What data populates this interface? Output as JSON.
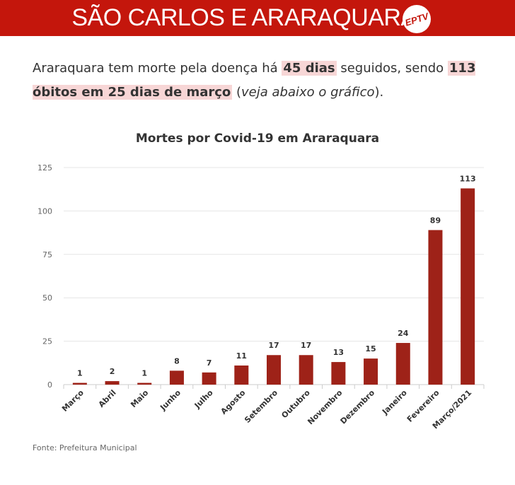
{
  "header": {
    "title": "SÃO CARLOS E ARARAQUARA",
    "logo_text": "EPTV"
  },
  "intro": {
    "part1": "Araraquara tem morte pela doença há ",
    "highlight1": "45 dias",
    "part2": " seguidos, sendo ",
    "highlight2": "113 óbitos em 25 dias de março",
    "part3": " (",
    "italic": "veja abaixo o gráfico",
    "part4": ")."
  },
  "colors": {
    "banner": "#c4160c",
    "bar": "#9e2218",
    "highlight": "#f7d6d6"
  },
  "chart_data": {
    "type": "bar",
    "title": "Mortes por Covid-19 em Araraquara",
    "xlabel": "",
    "ylabel": "",
    "categories": [
      "Março",
      "Abril",
      "Maio",
      "Junho",
      "Julho",
      "Agosto",
      "Setembro",
      "Outubro",
      "Novembro",
      "Dezembro",
      "Janeiro",
      "Fevereiro",
      "Março/2021"
    ],
    "values": [
      1,
      2,
      1,
      8,
      7,
      11,
      17,
      17,
      13,
      15,
      24,
      89,
      113
    ],
    "ylim": [
      0,
      125
    ],
    "yticks": [
      0,
      25,
      50,
      75,
      100,
      125
    ],
    "grid": true,
    "data_labels": true
  },
  "footer": {
    "source": "Fonte: Prefeitura Municipal"
  }
}
